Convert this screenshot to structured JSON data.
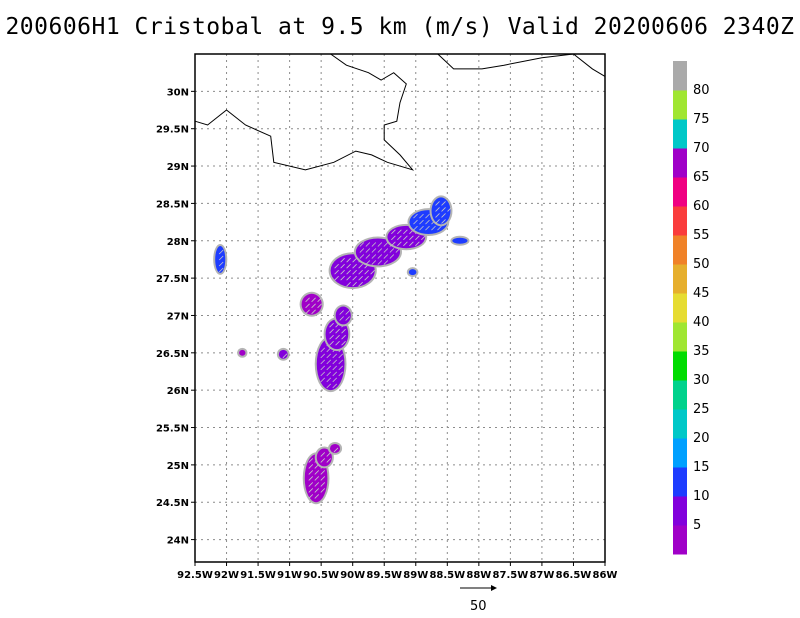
{
  "title": "200606H1 Cristobal at 9.5 km (m/s) Valid 20200606 2340Z",
  "map": {
    "lon_range": [
      -92.5,
      -86.0
    ],
    "lat_range": [
      23.7,
      30.5
    ],
    "lon_ticks": [
      {
        "value": -92.5,
        "label": "92.5W"
      },
      {
        "value": -92.0,
        "label": "92W"
      },
      {
        "value": -91.5,
        "label": "91.5W"
      },
      {
        "value": -91.0,
        "label": "91W"
      },
      {
        "value": -90.5,
        "label": "90.5W"
      },
      {
        "value": -90.0,
        "label": "90W"
      },
      {
        "value": -89.5,
        "label": "89.5W"
      },
      {
        "value": -89.0,
        "label": "89W"
      },
      {
        "value": -88.5,
        "label": "88.5W"
      },
      {
        "value": -88.0,
        "label": "88W"
      },
      {
        "value": -87.5,
        "label": "87.5W"
      },
      {
        "value": -87.0,
        "label": "87W"
      },
      {
        "value": -86.5,
        "label": "86.5W"
      },
      {
        "value": -86.0,
        "label": "86W"
      }
    ],
    "lat_ticks": [
      {
        "value": 24.0,
        "label": "24N"
      },
      {
        "value": 24.5,
        "label": "24.5N"
      },
      {
        "value": 25.0,
        "label": "25N"
      },
      {
        "value": 25.5,
        "label": "25.5N"
      },
      {
        "value": 26.0,
        "label": "26N"
      },
      {
        "value": 26.5,
        "label": "26.5N"
      },
      {
        "value": 27.0,
        "label": "27N"
      },
      {
        "value": 27.5,
        "label": "27.5N"
      },
      {
        "value": 28.0,
        "label": "28N"
      },
      {
        "value": 28.5,
        "label": "28.5N"
      },
      {
        "value": 29.0,
        "label": "29N"
      },
      {
        "value": 29.5,
        "label": "29.5N"
      },
      {
        "value": 30.0,
        "label": "30N"
      }
    ],
    "grid": true,
    "coastline": [
      [
        [
          -92.5,
          29.6
        ],
        [
          -92.3,
          29.55
        ],
        [
          -92.0,
          29.75
        ],
        [
          -91.7,
          29.55
        ],
        [
          -91.3,
          29.4
        ],
        [
          -91.25,
          29.05
        ],
        [
          -90.75,
          28.95
        ],
        [
          -90.3,
          29.05
        ],
        [
          -89.95,
          29.2
        ],
        [
          -89.7,
          29.15
        ],
        [
          -89.45,
          29.05
        ],
        [
          -89.05,
          28.95
        ],
        [
          -89.25,
          29.15
        ],
        [
          -89.5,
          29.35
        ],
        [
          -89.5,
          29.55
        ],
        [
          -89.3,
          29.6
        ],
        [
          -89.25,
          29.85
        ],
        [
          -89.15,
          30.1
        ],
        [
          -89.35,
          30.25
        ],
        [
          -89.55,
          30.15
        ],
        [
          -89.75,
          30.25
        ],
        [
          -90.1,
          30.35
        ],
        [
          -90.35,
          30.5
        ]
      ],
      [
        [
          -88.65,
          30.5
        ],
        [
          -88.4,
          30.3
        ],
        [
          -87.95,
          30.3
        ],
        [
          -87.6,
          30.35
        ],
        [
          -87.0,
          30.45
        ],
        [
          -86.5,
          30.5
        ],
        [
          -86.2,
          30.3
        ],
        [
          -86.0,
          30.2
        ]
      ]
    ]
  },
  "wind_field": {
    "units": "m/s",
    "blobs": [
      {
        "lon": -90.58,
        "lat": 24.82,
        "rx": 0.18,
        "ry": 0.32,
        "speed": 4
      },
      {
        "lon": -90.45,
        "lat": 25.1,
        "rx": 0.12,
        "ry": 0.12,
        "speed": 3
      },
      {
        "lon": -90.28,
        "lat": 25.22,
        "rx": 0.08,
        "ry": 0.06,
        "speed": 3
      },
      {
        "lon": -90.35,
        "lat": 26.35,
        "rx": 0.22,
        "ry": 0.35,
        "speed": 5
      },
      {
        "lon": -90.25,
        "lat": 26.75,
        "rx": 0.18,
        "ry": 0.2,
        "speed": 6
      },
      {
        "lon": -90.15,
        "lat": 27.0,
        "rx": 0.12,
        "ry": 0.12,
        "speed": 5
      },
      {
        "lon": -90.65,
        "lat": 27.15,
        "rx": 0.16,
        "ry": 0.14,
        "speed": 4
      },
      {
        "lon": -90.0,
        "lat": 27.6,
        "rx": 0.35,
        "ry": 0.22,
        "speed": 6
      },
      {
        "lon": -89.6,
        "lat": 27.85,
        "rx": 0.35,
        "ry": 0.18,
        "speed": 7
      },
      {
        "lon": -89.15,
        "lat": 28.05,
        "rx": 0.3,
        "ry": 0.15,
        "speed": 9
      },
      {
        "lon": -88.8,
        "lat": 28.25,
        "rx": 0.3,
        "ry": 0.16,
        "speed": 11
      },
      {
        "lon": -88.6,
        "lat": 28.4,
        "rx": 0.15,
        "ry": 0.18,
        "speed": 11
      },
      {
        "lon": -88.3,
        "lat": 28.0,
        "rx": 0.12,
        "ry": 0.04,
        "speed": 12
      },
      {
        "lon": -89.05,
        "lat": 27.58,
        "rx": 0.06,
        "ry": 0.04,
        "speed": 11
      },
      {
        "lon": -92.1,
        "lat": 27.75,
        "rx": 0.08,
        "ry": 0.18,
        "speed": 10
      },
      {
        "lon": -91.1,
        "lat": 26.48,
        "rx": 0.07,
        "ry": 0.06,
        "speed": 5
      },
      {
        "lon": -91.75,
        "lat": 26.5,
        "rx": 0.05,
        "ry": 0.04,
        "speed": 4
      }
    ]
  },
  "colorbar": {
    "levels": [
      "5",
      "10",
      "15",
      "20",
      "25",
      "30",
      "35",
      "40",
      "45",
      "50",
      "55",
      "60",
      "65",
      "70",
      "75",
      "80"
    ],
    "colors": [
      "#a000c8",
      "#8200dc",
      "#1e3cff",
      "#00a0ff",
      "#00c8c8",
      "#00d28c",
      "#00dc00",
      "#a0e632",
      "#e6dc32",
      "#e6af2d",
      "#f08228",
      "#fa3c3c",
      "#f00082",
      "#a000c8",
      "#00c8c8",
      "#a0e632",
      "#aaaaaa"
    ]
  },
  "reference_vector": {
    "label": "50"
  }
}
